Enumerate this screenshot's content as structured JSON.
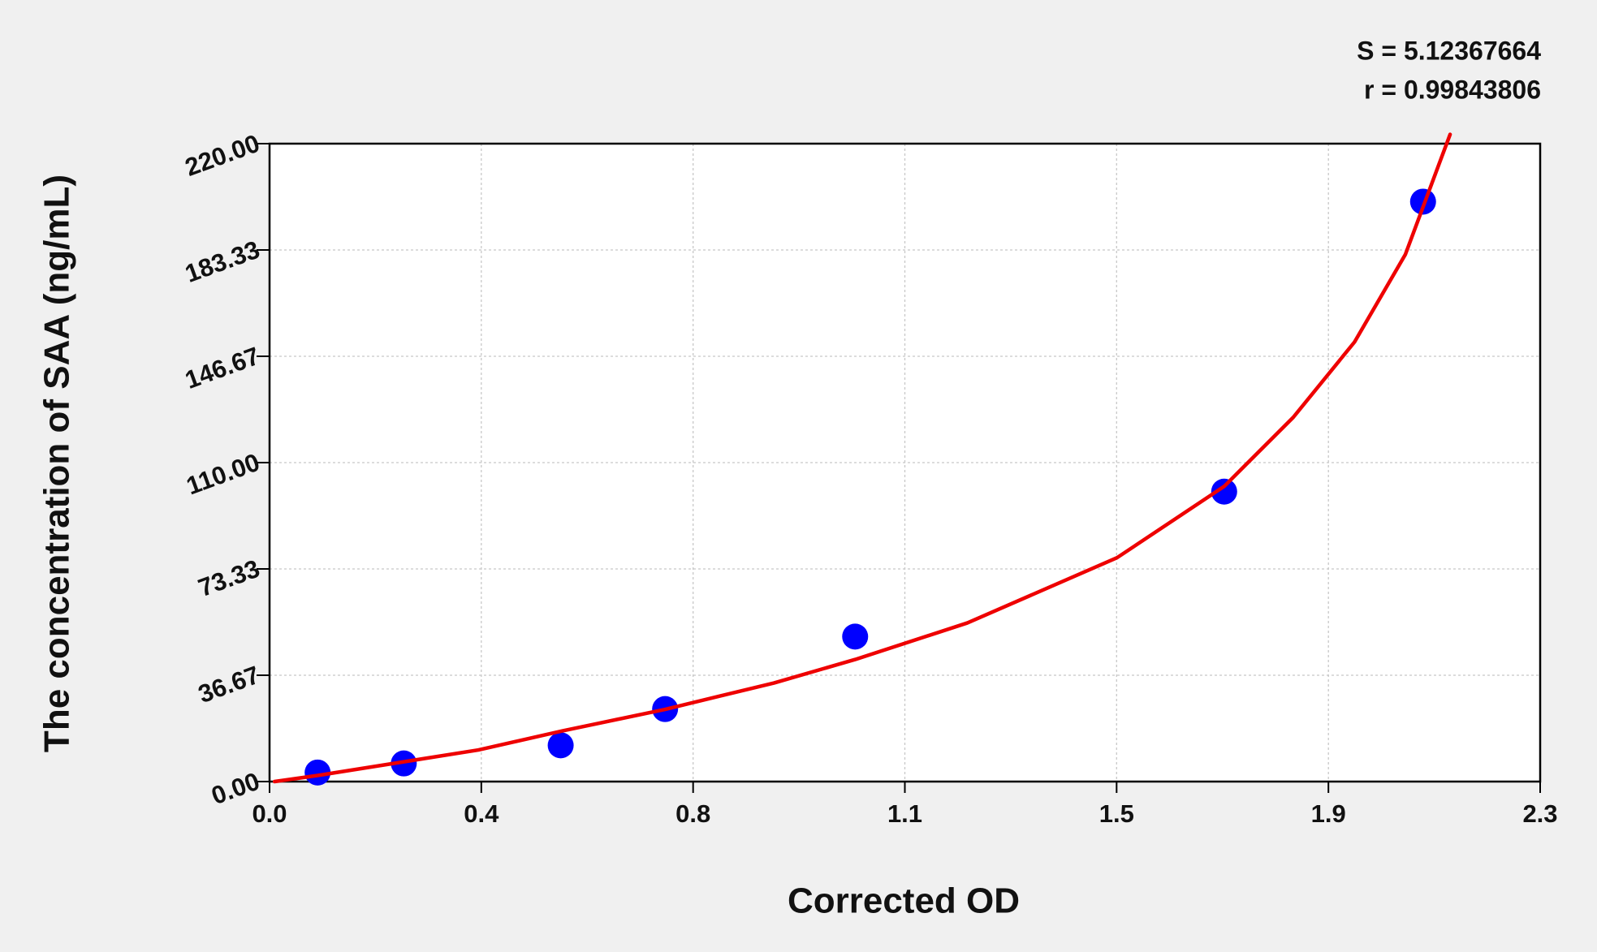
{
  "chart_data": {
    "type": "scatter",
    "annotations": [
      "S = 5.12367664",
      "r = 0.99843806"
    ],
    "xlabel": "Corrected OD",
    "ylabel": "The concentration of SAA (ng/mL)",
    "xlim": [
      0,
      2.3
    ],
    "xticks": [
      {
        "value": 0,
        "label": "0.0"
      },
      {
        "value": 0.3833,
        "label": "0.4"
      },
      {
        "value": 0.7667,
        "label": "0.8"
      },
      {
        "value": 1.15,
        "label": "1.1"
      },
      {
        "value": 1.5333,
        "label": "1.5"
      },
      {
        "value": 1.9167,
        "label": "1.9"
      },
      {
        "value": 2.3,
        "label": "2.3"
      }
    ],
    "ylim": [
      0,
      220
    ],
    "yticks": [
      {
        "value": 0,
        "label": "0.00"
      },
      36.67,
      73.33,
      {
        "value": 110,
        "label": "110.00"
      },
      146.67,
      183.33,
      {
        "value": 220,
        "label": "220.00"
      }
    ],
    "grid": true,
    "series": [
      {
        "type": "scatter",
        "color": "#0000ff",
        "x": [
          0.087,
          0.243,
          0.527,
          0.716,
          1.06,
          1.728,
          2.088
        ],
        "values": [
          3.125,
          6.25,
          12.5,
          25,
          50,
          100,
          200
        ]
      },
      {
        "type": "line",
        "color": "#ee0000",
        "x": [
          0.009,
          0.087,
          0.249,
          0.378,
          0.531,
          0.716,
          0.913,
          1.06,
          1.263,
          1.534,
          1.728,
          1.853,
          1.964,
          2.056,
          2.137
        ],
        "values": [
          0,
          2.1,
          7.0,
          10.9,
          17.5,
          24.9,
          34.0,
          42.1,
          54.7,
          77.2,
          101.8,
          125.6,
          151.6,
          181.8,
          223.2
        ]
      }
    ]
  }
}
